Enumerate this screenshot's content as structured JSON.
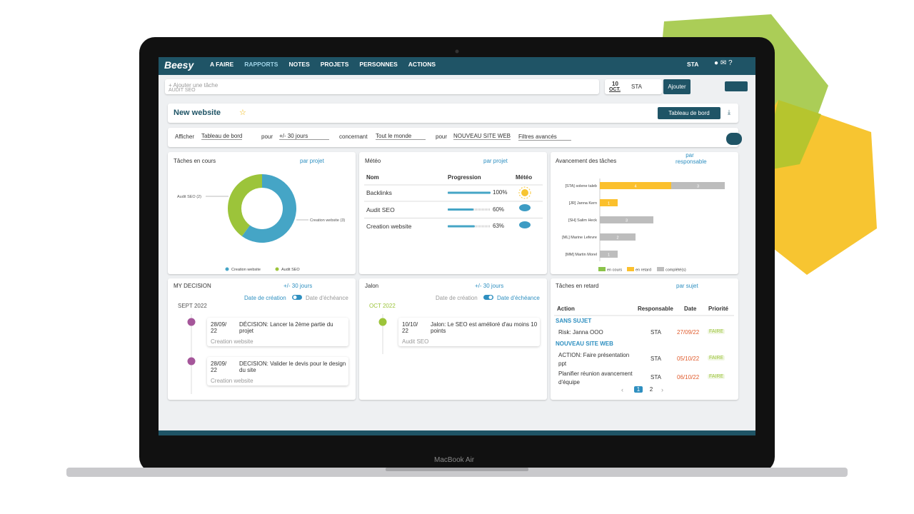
{
  "brand": "Beesy",
  "nav": [
    "A FAIRE",
    "RAPPORTS",
    "NOTES",
    "PROJETS",
    "PERSONNES",
    "ACTIONS"
  ],
  "user": "STA",
  "task_input": {
    "placeholder": "+ Ajouter une tâche",
    "subtext": "AUDIT SEO",
    "date_day": "10",
    "date_month": "OCT.",
    "assignee": "STA",
    "button": "Ajouter"
  },
  "dashboard": {
    "title": "New website",
    "button": "Tableau de bord"
  },
  "filters": {
    "show_label": "Afficher",
    "show": "Tableau de bord",
    "for_label": "pour",
    "period": "+/- 30 jours",
    "concerning_label": "concernant",
    "people": "Tout le monde",
    "for2_label": "pour",
    "project": "NOUVEAU SITE WEB",
    "advanced": "Filtres avancés"
  },
  "widgets": {
    "tasks": {
      "title": "Tâches en cours",
      "group": "par projet"
    },
    "meteo": {
      "title": "Météo",
      "group": "par projet",
      "columns": [
        "Nom",
        "Progression",
        "Météo"
      ],
      "rows": [
        {
          "name": "Backlinks",
          "progress": 100,
          "progress_label": "100%"
        },
        {
          "name": "Audit SEO",
          "progress": 60,
          "progress_label": "60%"
        },
        {
          "name": "Creation website",
          "progress": 63,
          "progress_label": "63%"
        }
      ]
    },
    "progress": {
      "title": "Avancement des tâches",
      "group": "par responsable"
    },
    "decision": {
      "title": "MY DECISION",
      "period": "+/- 30 jours",
      "toggle_left": "Date de création",
      "toggle_right": "Date d'échéance",
      "month": "SEPT 2022",
      "items": [
        {
          "date": "28/09/22",
          "text": "DÉCISION: Lancer la 2ème partie du projet",
          "project": "Creation website"
        },
        {
          "date": "28/09/22",
          "text": "DECISION: Valider le devis pour le design du site",
          "project": "Creation website"
        }
      ]
    },
    "milestone": {
      "title": "Jalon",
      "period": "+/- 30 jours",
      "toggle_left": "Date de création",
      "toggle_right": "Date d'échéance",
      "month": "OCT 2022",
      "items": [
        {
          "date": "10/10/22",
          "text": "Jalon: Le SEO est amélioré d'au moins 10 points",
          "project": "Audit SEO"
        }
      ]
    },
    "late": {
      "title": "Tâches en retard",
      "group": "par sujet",
      "columns": [
        "Action",
        "Responsable",
        "Date",
        "Priorité"
      ],
      "groups": [
        {
          "name": "SANS SUJET",
          "rows": [
            [
              "Risk: Janna OOO",
              "STA",
              "27/09/22",
              "FAIRE"
            ]
          ]
        },
        {
          "name": "NOUVEAU SITE WEB",
          "rows": [
            [
              "ACTION: Faire présentation ppt",
              "STA",
              "05/10/22",
              "FAIRE"
            ],
            [
              "Planifier réunion avancement d'équipe",
              "STA",
              "06/10/22",
              "FAIRE"
            ]
          ]
        }
      ],
      "pages": [
        "1",
        "2"
      ]
    }
  },
  "chart_data": [
    {
      "type": "pie",
      "categories": [
        "Creation website",
        "Audit SEO"
      ],
      "values": [
        3,
        2
      ],
      "colors": [
        "#45a5c6",
        "#9cc43a"
      ],
      "labels": [
        "Creation website (3)",
        "Audit SEO (2)"
      ]
    },
    {
      "type": "bar",
      "orientation": "horizontal",
      "stacked": true,
      "categories": [
        "[STA] solene taleb",
        "[JR] Janna Kern",
        "[SH] Salim Heck",
        "[ML] Marine Lefevre",
        "[MM] Martin Morel"
      ],
      "series": [
        {
          "name": "en cours",
          "color": "#8bc34a",
          "values": [
            0,
            0,
            0,
            0,
            0
          ]
        },
        {
          "name": "en retard",
          "color": "#fbc02d",
          "values": [
            4,
            1,
            0,
            0,
            0
          ]
        },
        {
          "name": "complété(s)",
          "color": "#bdbdbd",
          "values": [
            3,
            0,
            3,
            2,
            1
          ]
        }
      ],
      "xlim": [
        0,
        8
      ]
    }
  ],
  "laptop": "MacBook Air"
}
